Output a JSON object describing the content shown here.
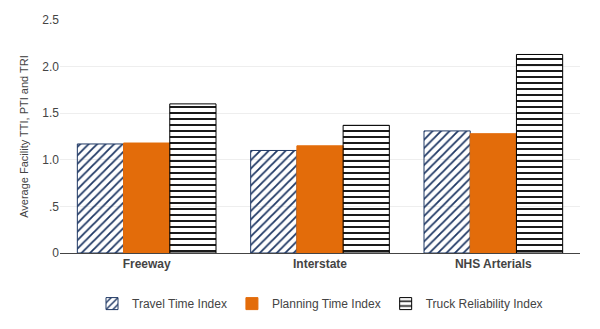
{
  "chart_data": {
    "type": "bar",
    "categories": [
      "Freeway",
      "Interstate",
      "NHS Arterials"
    ],
    "series": [
      {
        "name": "Travel Time Index",
        "color": "#4472C4",
        "values": [
          1.17,
          1.1,
          1.31
        ]
      },
      {
        "name": "Planning Time Index",
        "color": "#E36C0A",
        "values": [
          1.18,
          1.15,
          1.28
        ]
      },
      {
        "name": "Truck Reliability Index",
        "color": "white",
        "values": [
          1.6,
          1.37,
          2.13
        ]
      }
    ],
    "ylabel": "Average Facility TTI, PTI and TRI",
    "ylim": [
      0,
      2.5
    ],
    "yticks": [
      0,
      {
        "value": 0.5,
        "label": ".5"
      },
      {
        "value": 1.0,
        "label": "1.0"
      },
      1.5,
      {
        "value": 2.0,
        "label": "2.0"
      },
      2.5
    ],
    "grid": true,
    "legend": "bottom"
  }
}
